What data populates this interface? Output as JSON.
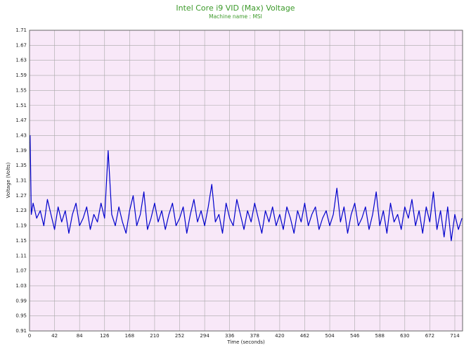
{
  "chart_data": {
    "type": "line",
    "title": "Intel Core i9 VID (Max) Voltage",
    "subtitle": "Machine name : MSI",
    "xlabel": "Time (seconds)",
    "ylabel": "Voltage (Volts)",
    "xlim": [
      0,
      727
    ],
    "ylim": [
      0.91,
      1.71
    ],
    "xticks": [
      0,
      42,
      84,
      126,
      168,
      210,
      252,
      294,
      336,
      378,
      420,
      462,
      504,
      546,
      588,
      630,
      672,
      714
    ],
    "yticks": [
      0.91,
      0.95,
      0.99,
      1.03,
      1.07,
      1.11,
      1.15,
      1.19,
      1.23,
      1.27,
      1.31,
      1.35,
      1.39,
      1.43,
      1.47,
      1.51,
      1.55,
      1.59,
      1.63,
      1.67,
      1.71
    ],
    "grid": true,
    "series": [
      {
        "color": "#0000cc",
        "x": [
          0,
          1,
          3,
          6,
          12,
          18,
          24,
          30,
          36,
          42,
          48,
          54,
          60,
          66,
          72,
          78,
          84,
          90,
          96,
          102,
          108,
          114,
          120,
          126,
          132,
          138,
          144,
          150,
          156,
          162,
          168,
          174,
          180,
          186,
          192,
          198,
          204,
          210,
          216,
          222,
          228,
          234,
          240,
          246,
          252,
          258,
          264,
          270,
          276,
          282,
          288,
          294,
          300,
          306,
          312,
          318,
          324,
          330,
          336,
          342,
          348,
          354,
          360,
          366,
          372,
          378,
          384,
          390,
          396,
          402,
          408,
          414,
          420,
          426,
          432,
          438,
          444,
          450,
          456,
          462,
          468,
          474,
          480,
          486,
          492,
          498,
          504,
          510,
          516,
          522,
          528,
          534,
          540,
          546,
          552,
          558,
          564,
          570,
          576,
          582,
          588,
          594,
          600,
          606,
          612,
          618,
          624,
          630,
          636,
          642,
          648,
          654,
          660,
          666,
          672,
          678,
          684,
          690,
          696,
          702,
          708,
          714,
          720,
          726
        ],
        "values": [
          1.41,
          1.43,
          1.22,
          1.25,
          1.21,
          1.23,
          1.19,
          1.26,
          1.22,
          1.18,
          1.24,
          1.2,
          1.23,
          1.17,
          1.22,
          1.25,
          1.19,
          1.21,
          1.24,
          1.18,
          1.22,
          1.2,
          1.25,
          1.21,
          1.39,
          1.22,
          1.19,
          1.24,
          1.2,
          1.17,
          1.23,
          1.27,
          1.19,
          1.22,
          1.28,
          1.18,
          1.21,
          1.25,
          1.2,
          1.23,
          1.18,
          1.22,
          1.25,
          1.19,
          1.21,
          1.24,
          1.17,
          1.22,
          1.26,
          1.2,
          1.23,
          1.19,
          1.24,
          1.3,
          1.2,
          1.22,
          1.17,
          1.25,
          1.21,
          1.19,
          1.26,
          1.22,
          1.18,
          1.23,
          1.2,
          1.25,
          1.21,
          1.17,
          1.23,
          1.2,
          1.24,
          1.19,
          1.22,
          1.18,
          1.24,
          1.21,
          1.17,
          1.23,
          1.2,
          1.25,
          1.19,
          1.22,
          1.24,
          1.18,
          1.21,
          1.23,
          1.19,
          1.22,
          1.29,
          1.2,
          1.24,
          1.17,
          1.22,
          1.25,
          1.19,
          1.21,
          1.24,
          1.18,
          1.22,
          1.28,
          1.19,
          1.23,
          1.17,
          1.25,
          1.2,
          1.22,
          1.18,
          1.24,
          1.21,
          1.26,
          1.19,
          1.23,
          1.17,
          1.24,
          1.2,
          1.28,
          1.18,
          1.23,
          1.16,
          1.24,
          1.15,
          1.22,
          1.18,
          1.21
        ]
      }
    ]
  }
}
